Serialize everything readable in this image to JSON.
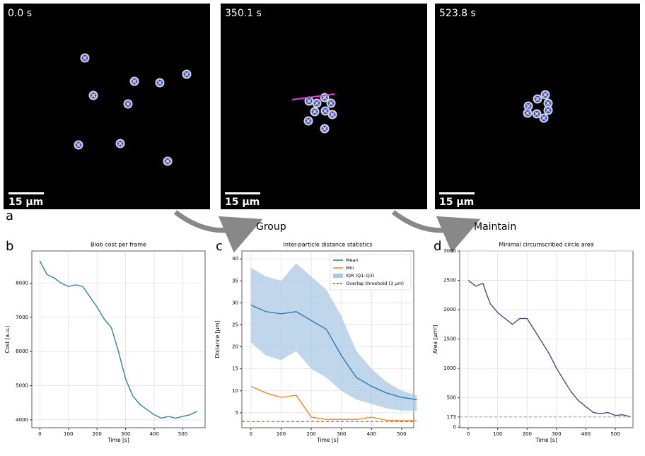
{
  "figure": {
    "panel_label": "a",
    "images": [
      {
        "time_label": "0.0 s",
        "scale_bar": "15 µm"
      },
      {
        "time_label": "350.1 s",
        "scale_bar": "15 µm"
      },
      {
        "time_label": "523.8 s",
        "scale_bar": "15 µm"
      }
    ],
    "arrows": [
      "Group",
      "Maintain"
    ]
  },
  "chart_data": [
    {
      "type": "line",
      "panel_label": "b",
      "title": "Blob cost per frame",
      "x_label": "Time [s]",
      "y_label": "Cost (a.u.)",
      "x": [
        0,
        25,
        50,
        75,
        100,
        125,
        150,
        175,
        200,
        225,
        250,
        275,
        300,
        325,
        350,
        375,
        400,
        425,
        450,
        475,
        500,
        525,
        550
      ],
      "series": [
        {
          "name": "Blob cost",
          "color": "#1f77b4",
          "values": [
            8650,
            8250,
            8150,
            8000,
            7900,
            7950,
            7900,
            7600,
            7300,
            6950,
            6700,
            6000,
            5200,
            4700,
            4450,
            4300,
            4150,
            4050,
            4100,
            4050,
            4100,
            4150,
            4250
          ]
        }
      ],
      "xlim": [
        -28,
        578
      ],
      "ylim": [
        3770,
        8940
      ],
      "xticks": [
        0,
        100,
        200,
        300,
        400,
        500
      ],
      "yticks": [
        4000,
        5000,
        6000,
        7000,
        8000
      ],
      "grid": true,
      "legend": false
    },
    {
      "type": "line",
      "panel_label": "c",
      "title": "Inter-particle distance statistics",
      "x_label": "Time [s]",
      "y_label": "Distance [µm]",
      "x": [
        0,
        50,
        100,
        150,
        200,
        250,
        300,
        350,
        400,
        450,
        500,
        550
      ],
      "series": [
        {
          "name": "Mean",
          "color": "#1f77b4",
          "values": [
            29.5,
            28,
            27.5,
            28,
            26,
            24,
            18,
            13,
            11,
            9.5,
            8.5,
            8
          ]
        },
        {
          "name": "Min",
          "color": "#ff7f0e",
          "values": [
            11,
            9.5,
            8.5,
            9,
            4,
            3.5,
            3.5,
            3.5,
            4,
            3.3,
            3.2,
            3.2
          ]
        },
        {
          "name": "IQR (Q1–Q3)",
          "color": "#aac8e4",
          "band": true,
          "lower": [
            21,
            18,
            17,
            19,
            15,
            13,
            10,
            8,
            7,
            6,
            5.5,
            5.5
          ],
          "upper": [
            38,
            36,
            35,
            39,
            36,
            33,
            27,
            19,
            15,
            12,
            10,
            9
          ]
        }
      ],
      "reference_line": {
        "name": "Overlap threshold (3 µm)",
        "value": 3,
        "color": "#d62728"
      },
      "xlim": [
        -30,
        540
      ],
      "ylim": [
        1.6,
        41.8
      ],
      "xticks": [
        0,
        100,
        200,
        300,
        400,
        500
      ],
      "yticks": [
        5,
        10,
        15,
        20,
        25,
        30,
        35,
        40
      ],
      "grid": true,
      "legend": "upper right"
    },
    {
      "type": "line",
      "panel_label": "d",
      "title": "Minimal circumscribed circle area",
      "x_label": "Time [s]",
      "y_label": "Area [µm²]",
      "x": [
        0,
        25,
        50,
        60,
        75,
        100,
        125,
        150,
        175,
        200,
        225,
        250,
        275,
        300,
        325,
        350,
        375,
        400,
        425,
        450,
        475,
        500,
        525,
        550
      ],
      "series": [
        {
          "name": "Area",
          "color": "#3b3b98",
          "values": [
            2500,
            2400,
            2450,
            2300,
            2100,
            1950,
            1850,
            1750,
            1850,
            1850,
            1650,
            1450,
            1250,
            1000,
            800,
            600,
            450,
            350,
            250,
            230,
            250,
            200,
            210,
            180
          ]
        }
      ],
      "reference_line": {
        "value": 173,
        "color": "#999999"
      },
      "xlim": [
        -29,
        560
      ],
      "ylim": [
        -10,
        3000
      ],
      "xticks": [
        0,
        100,
        200,
        300,
        400,
        500
      ],
      "yticks": [
        0,
        173,
        500,
        1000,
        1500,
        2000,
        2500,
        3000
      ],
      "grid": true,
      "legend": false
    }
  ]
}
